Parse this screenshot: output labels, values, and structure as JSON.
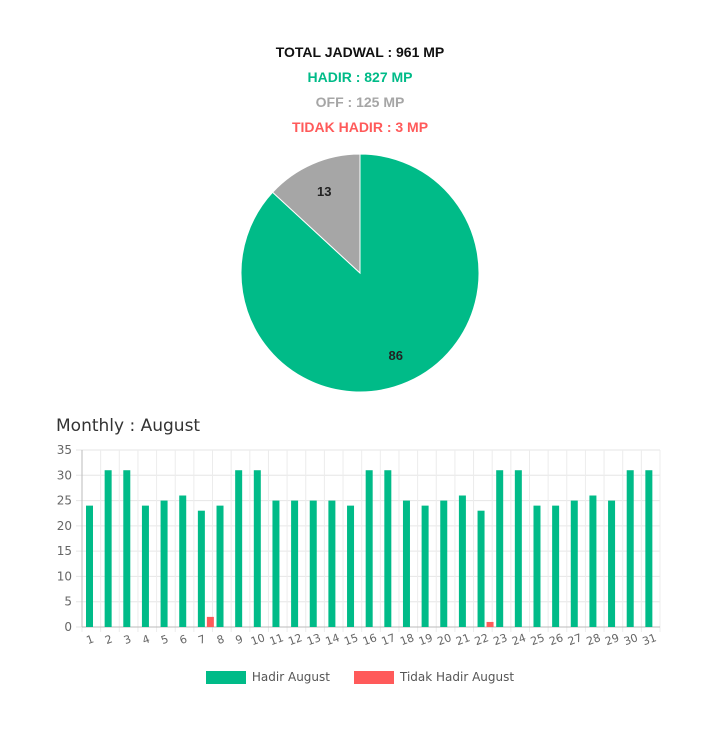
{
  "summary": {
    "total": "TOTAL JADWAL : 961 MP",
    "hadir": "HADIR : 827 MP",
    "off": "OFF : 125 MP",
    "tidak_hadir": "TIDAK HADIR : 3 MP"
  },
  "colors": {
    "hadir": "#00bb88",
    "off": "#a6a6a6",
    "tidak_hadir": "#ff5a5a"
  },
  "monthly_title": "Monthly : August",
  "chart_data": [
    {
      "type": "pie",
      "labels": [
        "Hadir",
        "Off"
      ],
      "values": [
        86,
        13
      ],
      "slice_labels": [
        "86",
        "13"
      ]
    },
    {
      "type": "bar",
      "categories": [
        "1",
        "2",
        "3",
        "4",
        "5",
        "6",
        "7",
        "8",
        "9",
        "10",
        "11",
        "12",
        "13",
        "14",
        "15",
        "16",
        "17",
        "18",
        "19",
        "20",
        "21",
        "22",
        "23",
        "24",
        "25",
        "26",
        "27",
        "28",
        "29",
        "30",
        "31"
      ],
      "series": [
        {
          "name": "Hadir August",
          "values": [
            24,
            31,
            31,
            24,
            25,
            26,
            23,
            24,
            31,
            31,
            25,
            25,
            25,
            25,
            24,
            31,
            31,
            25,
            24,
            25,
            26,
            23,
            31,
            31,
            24,
            24,
            25,
            26,
            25,
            31,
            31
          ]
        },
        {
          "name": "Tidak Hadir August",
          "values": [
            0,
            0,
            0,
            0,
            0,
            0,
            2,
            0,
            0,
            0,
            0,
            0,
            0,
            0,
            0,
            0,
            0,
            0,
            0,
            0,
            0,
            1,
            0,
            0,
            0,
            0,
            0,
            0,
            0,
            0,
            0
          ]
        }
      ],
      "ylim": [
        0,
        35
      ],
      "yticks": [
        0,
        5,
        10,
        15,
        20,
        25,
        30,
        35
      ],
      "grid": true,
      "legend": "bottom"
    }
  ]
}
